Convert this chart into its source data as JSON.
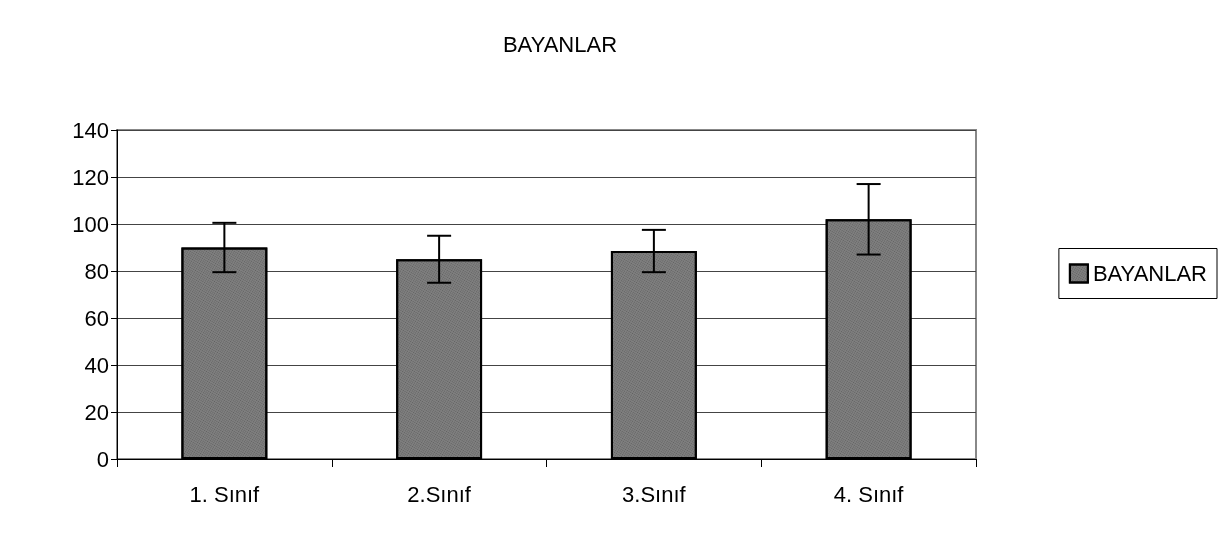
{
  "chart_data": {
    "type": "bar",
    "title": "BAYANLAR",
    "categories": [
      "1. Sınıf",
      "2.Sınıf",
      "3.Sınıf",
      "4. Sınıf"
    ],
    "series": [
      {
        "name": "BAYANLAR",
        "color": "#808080",
        "values": [
          90,
          85,
          88.5,
          102
        ],
        "errors": [
          10.5,
          10,
          9,
          15
        ]
      }
    ],
    "ylim": [
      0,
      140
    ],
    "yticks": [
      0,
      20,
      40,
      60,
      80,
      100,
      120,
      140
    ],
    "grid": "y",
    "legend": "right"
  }
}
